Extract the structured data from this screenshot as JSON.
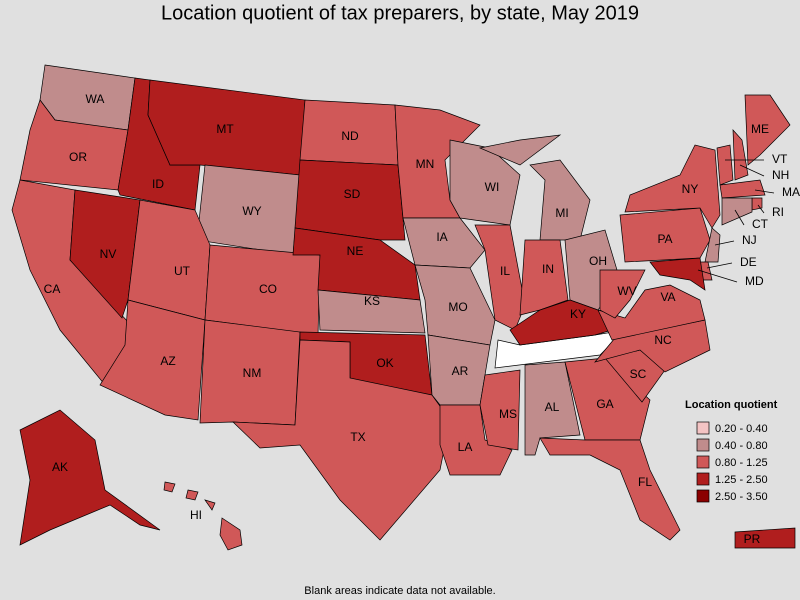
{
  "title": "Location quotient of tax preparers, by state, May 2019",
  "note": "Blank areas indicate data not available.",
  "legend": {
    "title": "Location quotient",
    "bins": [
      {
        "label": "0.20 - 0.40",
        "color": "#f4c4c4"
      },
      {
        "label": "0.40 - 0.80",
        "color": "#c08c8c"
      },
      {
        "label": "0.80 - 1.25",
        "color": "#d05858"
      },
      {
        "label": "1.25 - 2.50",
        "color": "#b01e1e"
      },
      {
        "label": "2.50 - 3.50",
        "color": "#8b0000"
      }
    ]
  },
  "states": [
    {
      "label": "WA",
      "color": "#c08c8c"
    },
    {
      "label": "OR",
      "color": "#d05858"
    },
    {
      "label": "CA",
      "color": "#d05858"
    },
    {
      "label": "NV",
      "color": "#b01e1e"
    },
    {
      "label": "ID",
      "color": "#b01e1e"
    },
    {
      "label": "MT",
      "color": "#b01e1e"
    },
    {
      "label": "WY",
      "color": "#c08c8c"
    },
    {
      "label": "UT",
      "color": "#d05858"
    },
    {
      "label": "CO",
      "color": "#d05858"
    },
    {
      "label": "AZ",
      "color": "#d05858"
    },
    {
      "label": "NM",
      "color": "#d05858"
    },
    {
      "label": "ND",
      "color": "#d05858"
    },
    {
      "label": "SD",
      "color": "#b01e1e"
    },
    {
      "label": "NE",
      "color": "#b01e1e"
    },
    {
      "label": "KS",
      "color": "#c08c8c"
    },
    {
      "label": "OK",
      "color": "#b01e1e"
    },
    {
      "label": "TX",
      "color": "#d05858"
    },
    {
      "label": "MN",
      "color": "#d05858"
    },
    {
      "label": "IA",
      "color": "#c08c8c"
    },
    {
      "label": "MO",
      "color": "#c08c8c"
    },
    {
      "label": "AR",
      "color": "#c08c8c"
    },
    {
      "label": "LA",
      "color": "#d05858"
    },
    {
      "label": "WI",
      "color": "#c08c8c"
    },
    {
      "label": "IL",
      "color": "#d05858"
    },
    {
      "label": "MI",
      "color": "#c08c8c"
    },
    {
      "label": "IN",
      "color": "#d05858"
    },
    {
      "label": "OH",
      "color": "#c08c8c"
    },
    {
      "label": "KY",
      "color": "#b01e1e"
    },
    {
      "label": "MS",
      "color": "#d05858"
    },
    {
      "label": "AL",
      "color": "#c08c8c"
    },
    {
      "label": "GA",
      "color": "#d05858"
    },
    {
      "label": "FL",
      "color": "#d05858"
    },
    {
      "label": "SC",
      "color": "#d05858"
    },
    {
      "label": "NC",
      "color": "#d05858"
    },
    {
      "label": "VA",
      "color": "#d05858"
    },
    {
      "label": "WV",
      "color": "#d05858"
    },
    {
      "label": "PA",
      "color": "#d05858"
    },
    {
      "label": "NY",
      "color": "#d05858"
    },
    {
      "label": "VT",
      "color": "#d05858"
    },
    {
      "label": "NH",
      "color": "#d05858"
    },
    {
      "label": "ME",
      "color": "#d05858"
    },
    {
      "label": "MA",
      "color": "#d05858"
    },
    {
      "label": "RI",
      "color": "#d05858"
    },
    {
      "label": "CT",
      "color": "#c08c8c"
    },
    {
      "label": "NJ",
      "color": "#c08c8c"
    },
    {
      "label": "DE",
      "color": "#d05858"
    },
    {
      "label": "MD",
      "color": "#b01e1e"
    },
    {
      "label": "AK",
      "color": "#b01e1e"
    },
    {
      "label": "HI",
      "color": "#d05858"
    },
    {
      "label": "PR",
      "color": "#b01e1e"
    }
  ]
}
